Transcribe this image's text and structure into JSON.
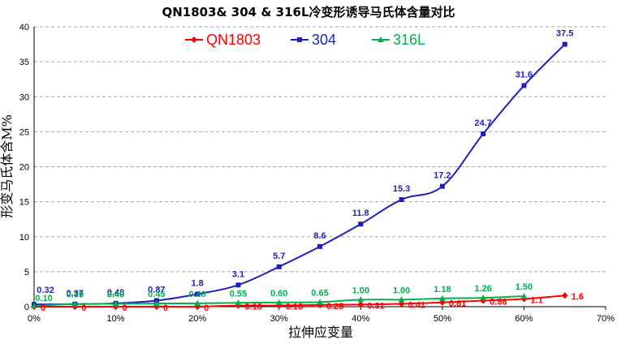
{
  "chart_data": {
    "type": "line",
    "title": "QN1803& 304 & 316L冷变形诱导马氏体含量对比",
    "xlabel": "拉伸应变量",
    "ylabel": "形变马氏体含M%",
    "x_ticks": [
      "0%",
      "10%",
      "20%",
      "30%",
      "40%",
      "50%",
      "60%",
      "70%"
    ],
    "y_ticks": [
      "0",
      "5",
      "10",
      "15",
      "20",
      "25",
      "30",
      "35",
      "40"
    ],
    "xlim": [
      0,
      70
    ],
    "ylim": [
      0,
      40
    ],
    "grid": "horizontal-dashed",
    "legend_position": "top",
    "series": [
      {
        "name": "QN1803",
        "color": "#ff0000",
        "marker": "diamond",
        "x": [
          0,
          5,
          10,
          15,
          20,
          25,
          30,
          35,
          40,
          45,
          50,
          55,
          60,
          65
        ],
        "values": [
          0,
          0,
          0,
          0,
          0,
          0.16,
          0.16,
          0.25,
          0.31,
          0.41,
          0.61,
          0.86,
          1.1,
          1.6
        ],
        "labels": [
          "0",
          "0",
          "0",
          "0",
          "0",
          "0.16",
          "0.16",
          "0.25",
          "0.31",
          "0.41",
          "0.61",
          "0.86",
          "1.1",
          "1.6"
        ]
      },
      {
        "name": "304",
        "color": "#1f1fbf",
        "marker": "square",
        "x": [
          0,
          5,
          10,
          15,
          20,
          25,
          30,
          35,
          40,
          45,
          50,
          55,
          60,
          65
        ],
        "values": [
          0.32,
          0.37,
          0.48,
          0.87,
          1.8,
          3.1,
          5.7,
          8.6,
          11.8,
          15.3,
          17.2,
          24.7,
          31.6,
          37.5
        ],
        "labels": [
          "0.32",
          "0.37",
          "0.48",
          "0.87",
          "1.8",
          "3.1",
          "5.7",
          "8.6",
          "11.8",
          "15.3",
          "17.2",
          "24.7",
          "31.6",
          "37.5"
        ]
      },
      {
        "name": "316L",
        "color": "#00b050",
        "marker": "triangle",
        "x": [
          0,
          5,
          10,
          15,
          20,
          25,
          30,
          35,
          40,
          45,
          50,
          55,
          60
        ],
        "values": [
          0.1,
          0.39,
          0.4,
          0.45,
          0.48,
          0.55,
          0.6,
          0.65,
          1.0,
          1.0,
          1.18,
          1.26,
          1.5
        ],
        "labels": [
          "0.10",
          "0.39",
          "0.40",
          "0.45",
          "0.48",
          "0.55",
          "0.60",
          "0.65",
          "1.00",
          "1.00",
          "1.18",
          "1.26",
          "1.50"
        ]
      }
    ]
  }
}
